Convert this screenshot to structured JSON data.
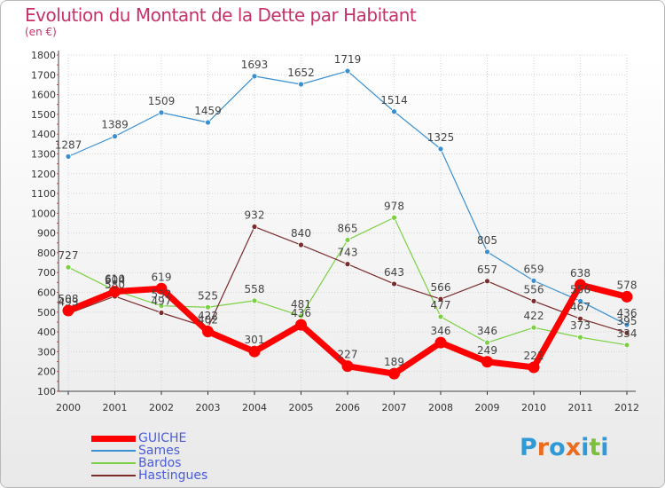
{
  "chart_data": {
    "type": "line",
    "title": "Evolution du Montant de la Dette par Habitant",
    "subtitle": "(en €)",
    "x": [
      "2000",
      "2001",
      "2002",
      "2003",
      "2004",
      "2005",
      "2006",
      "2007",
      "2008",
      "2009",
      "2010",
      "2011",
      "2012"
    ],
    "ylim": [
      100,
      1800
    ],
    "yticks": [
      100,
      200,
      300,
      400,
      500,
      600,
      700,
      800,
      900,
      1000,
      1100,
      1200,
      1300,
      1400,
      1500,
      1600,
      1700,
      1800
    ],
    "grid": true,
    "legend_position": "bottom-left",
    "series": [
      {
        "name": "GUICHE",
        "color": "#ff0000",
        "values": [
          508,
          604,
          619,
          402,
          301,
          436,
          227,
          189,
          346,
          249,
          221,
          638,
          578
        ]
      },
      {
        "name": "Sames",
        "color": "#3a8fd0",
        "values": [
          1287,
          1389,
          1509,
          1459,
          1693,
          1652,
          1719,
          1514,
          1325,
          805,
          659,
          556,
          436
        ]
      },
      {
        "name": "Bardos",
        "color": "#7bd043",
        "values": [
          727,
          610,
          532,
          525,
          558,
          481,
          865,
          978,
          477,
          346,
          422,
          373,
          334
        ]
      },
      {
        "name": "Hastingues",
        "color": "#7b2b2b",
        "values": [
          493,
          580,
          497,
          422,
          932,
          840,
          743,
          643,
          566,
          657,
          556,
          467,
          395
        ]
      }
    ]
  },
  "logo": {
    "text": "Proxiti",
    "letters": [
      "P",
      "r",
      "o",
      "x",
      "i",
      "t",
      "i"
    ],
    "colors": [
      "#2f9ad6",
      "#ea6c20",
      "#2f9ad6",
      "#ea6c20",
      "#2f9ad6",
      "#7bbf3c",
      "#2f9ad6"
    ]
  }
}
